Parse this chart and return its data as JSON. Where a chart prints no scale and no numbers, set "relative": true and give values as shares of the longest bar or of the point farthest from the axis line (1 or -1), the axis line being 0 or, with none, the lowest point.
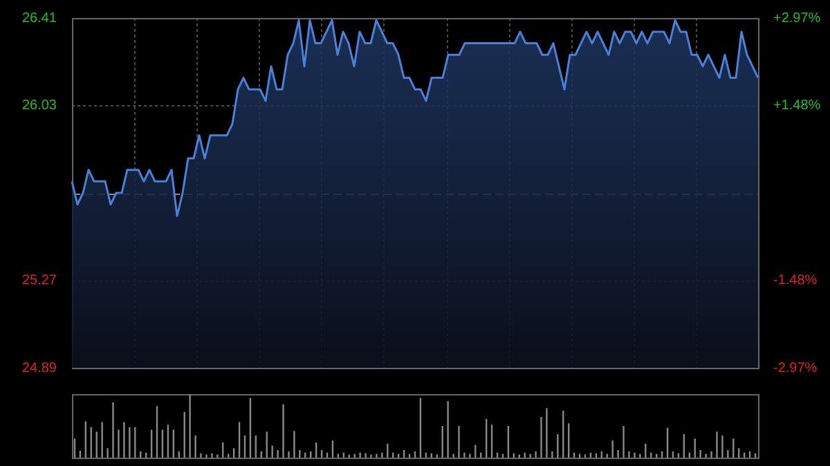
{
  "chart_data": [
    {
      "type": "area",
      "categories": [
        null,
        null,
        null,
        null,
        null,
        null,
        null,
        null,
        null,
        null,
        null,
        null,
        null,
        null,
        null,
        null,
        null,
        null,
        null,
        null,
        null,
        null,
        null,
        null,
        null,
        null,
        null,
        null,
        null,
        null,
        null,
        null,
        null,
        null,
        null,
        null,
        null,
        null,
        null,
        null,
        null,
        null,
        null,
        null,
        null,
        null,
        null,
        null,
        null,
        null,
        null,
        null,
        null,
        null,
        null,
        null,
        null,
        null,
        null,
        null,
        null,
        null,
        null,
        null,
        null,
        null,
        null,
        null,
        null,
        null,
        null,
        null,
        null,
        null,
        null,
        null,
        null,
        null,
        null,
        null,
        null,
        null,
        null,
        null,
        null,
        null,
        null,
        null,
        null,
        null,
        null,
        null,
        null,
        null,
        null,
        null,
        null,
        null,
        null,
        null,
        null,
        null,
        null,
        null,
        null,
        null,
        null,
        null,
        null,
        null,
        null,
        null,
        null,
        null,
        null,
        null,
        null,
        null,
        null,
        null,
        null,
        null,
        null,
        null,
        null
      ],
      "series": [
        {
          "color": "#4a80d8",
          "values": [
            25.7,
            25.6,
            25.65,
            25.75,
            25.7,
            25.7,
            25.7,
            25.6,
            25.65,
            25.65,
            25.75,
            25.75,
            25.75,
            25.7,
            25.75,
            25.7,
            25.7,
            25.7,
            25.75,
            25.55,
            25.65,
            25.8,
            25.8,
            25.9,
            25.8,
            25.9,
            25.9,
            25.9,
            25.9,
            25.95,
            26.1,
            26.15,
            26.1,
            26.1,
            26.1,
            26.05,
            26.2,
            26.1,
            26.1,
            26.25,
            26.3,
            26.4,
            26.2,
            26.4,
            26.3,
            26.3,
            26.35,
            26.4,
            26.25,
            26.35,
            26.3,
            26.2,
            26.35,
            26.3,
            26.3,
            26.4,
            26.35,
            26.3,
            26.3,
            26.25,
            26.15,
            26.15,
            26.1,
            26.1,
            26.05,
            26.15,
            26.15,
            26.15,
            26.25,
            26.25,
            26.25,
            26.3,
            26.3,
            26.3,
            26.3,
            26.3,
            26.3,
            26.3,
            26.3,
            26.3,
            26.3,
            26.35,
            26.3,
            26.3,
            26.3,
            26.25,
            26.25,
            26.3,
            26.2,
            26.1,
            26.25,
            26.25,
            26.3,
            26.35,
            26.3,
            26.35,
            26.3,
            26.25,
            26.35,
            26.3,
            26.35,
            26.35,
            26.3,
            26.35,
            26.3,
            26.35,
            26.35,
            26.35,
            26.3,
            26.4,
            26.35,
            26.35,
            26.25,
            26.25,
            26.2,
            26.25,
            26.2,
            26.15,
            26.25,
            26.15,
            26.15,
            26.35,
            26.25,
            26.2,
            26.15
          ]
        }
      ],
      "ylim": [
        24.89,
        26.41
      ],
      "yticks": [
        24.89,
        25.27,
        26.03,
        26.41
      ],
      "y2lim": [
        -2.97,
        2.97
      ],
      "y2ticks": [
        {
          "value": -2.97,
          "label": "-2.97%"
        },
        {
          "value": -1.48,
          "label": "-1.48%"
        },
        {
          "value": 1.48,
          "label": "+1.48%"
        },
        {
          "value": 2.97,
          "label": "+2.97%"
        }
      ],
      "ref_lines": [
        {
          "axis": "y",
          "value": 25.65,
          "color": "#888888",
          "line_style": "dashed"
        }
      ],
      "grid": true,
      "legend": false,
      "marker": "none",
      "line_style": "solid",
      "tick_labels": "y"
    },
    {
      "type": "bar",
      "relative": true,
      "categories": [
        null,
        null,
        null,
        null,
        null,
        null,
        null,
        null,
        null,
        null,
        null,
        null,
        null,
        null,
        null,
        null,
        null,
        null,
        null,
        null,
        null,
        null,
        null,
        null,
        null,
        null,
        null,
        null,
        null,
        null,
        null,
        null,
        null,
        null,
        null,
        null,
        null,
        null,
        null,
        null,
        null,
        null,
        null,
        null,
        null,
        null,
        null,
        null,
        null,
        null,
        null,
        null,
        null,
        null,
        null,
        null,
        null,
        null,
        null,
        null,
        null,
        null,
        null,
        null,
        null,
        null,
        null,
        null,
        null,
        null,
        null,
        null,
        null,
        null,
        null,
        null,
        null,
        null,
        null,
        null,
        null,
        null,
        null,
        null,
        null,
        null,
        null,
        null,
        null,
        null,
        null,
        null,
        null,
        null,
        null,
        null,
        null,
        null,
        null,
        null,
        null,
        null,
        null,
        null,
        null,
        null,
        null,
        null,
        null,
        null,
        null,
        null,
        null,
        null,
        null,
        null,
        null,
        null,
        null,
        null,
        null,
        null,
        null,
        null,
        null
      ],
      "color": "#8a8a8a",
      "values": [
        0.3,
        0.11,
        0.57,
        0.48,
        0.41,
        0.56,
        0.15,
        0.87,
        0.44,
        0.56,
        0.48,
        0.48,
        0.1,
        0.08,
        0.44,
        0.81,
        0.44,
        0.52,
        0.44,
        0.1,
        0.72,
        1,
        0.35,
        0.07,
        0.05,
        0.07,
        0.05,
        0.24,
        0.06,
        0.15,
        0.56,
        0.35,
        0.94,
        0.35,
        0.1,
        0.41,
        0.19,
        0.12,
        0.84,
        0.1,
        0.42,
        0.12,
        0.08,
        0.1,
        0.24,
        0.12,
        0.08,
        0.27,
        0.06,
        0.08,
        0.05,
        0.06,
        0.08,
        0.07,
        0.05,
        0.06,
        0.08,
        0.22,
        0.08,
        0.06,
        0.12,
        0.06,
        0.1,
        0.94,
        0.08,
        0.07,
        0.05,
        0.5,
        0.89,
        0.06,
        0.5,
        0.08,
        0.06,
        0.2,
        0.08,
        0.61,
        0.52,
        0.08,
        0.06,
        0.5,
        0.07,
        0.05,
        0.08,
        0.06,
        0.1,
        0.64,
        0.78,
        0.1,
        0.37,
        0.74,
        0.54,
        0.08,
        0.06,
        0.05,
        0.08,
        0.07,
        0.1,
        0.06,
        0.27,
        0.12,
        0.5,
        0.1,
        0.08,
        0.06,
        0.22,
        0.08,
        0.06,
        0.1,
        0.47,
        0.1,
        0.07,
        0.37,
        0.08,
        0.3,
        0.12,
        0.06,
        0.1,
        0.41,
        0.35,
        0.12,
        0.3,
        0.15,
        0.08,
        0.1,
        0.07
      ],
      "legend": false
    }
  ]
}
